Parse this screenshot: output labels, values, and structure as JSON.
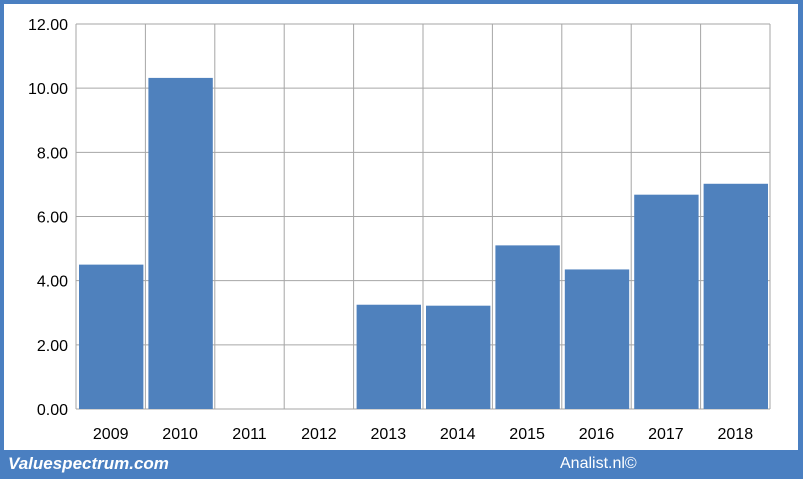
{
  "chart_data": {
    "type": "bar",
    "categories": [
      "2009",
      "2010",
      "2011",
      "2012",
      "2013",
      "2014",
      "2015",
      "2016",
      "2017",
      "2018"
    ],
    "values": [
      4.5,
      10.32,
      0,
      0,
      3.25,
      3.22,
      5.1,
      4.35,
      6.68,
      7.02
    ],
    "title": "",
    "xlabel": "",
    "ylabel": "",
    "ylim": [
      0,
      12
    ],
    "yticks": [
      "0.00",
      "2.00",
      "4.00",
      "6.00",
      "8.00",
      "10.00",
      "12.00"
    ],
    "grid": true,
    "legend": "none",
    "bar_color": "#4f81bd"
  },
  "footer": {
    "left": "Valuespectrum.com",
    "right": "Analist.nl©"
  },
  "colors": {
    "frame": "#4a7fc1",
    "grid": "#a6a6a6"
  }
}
